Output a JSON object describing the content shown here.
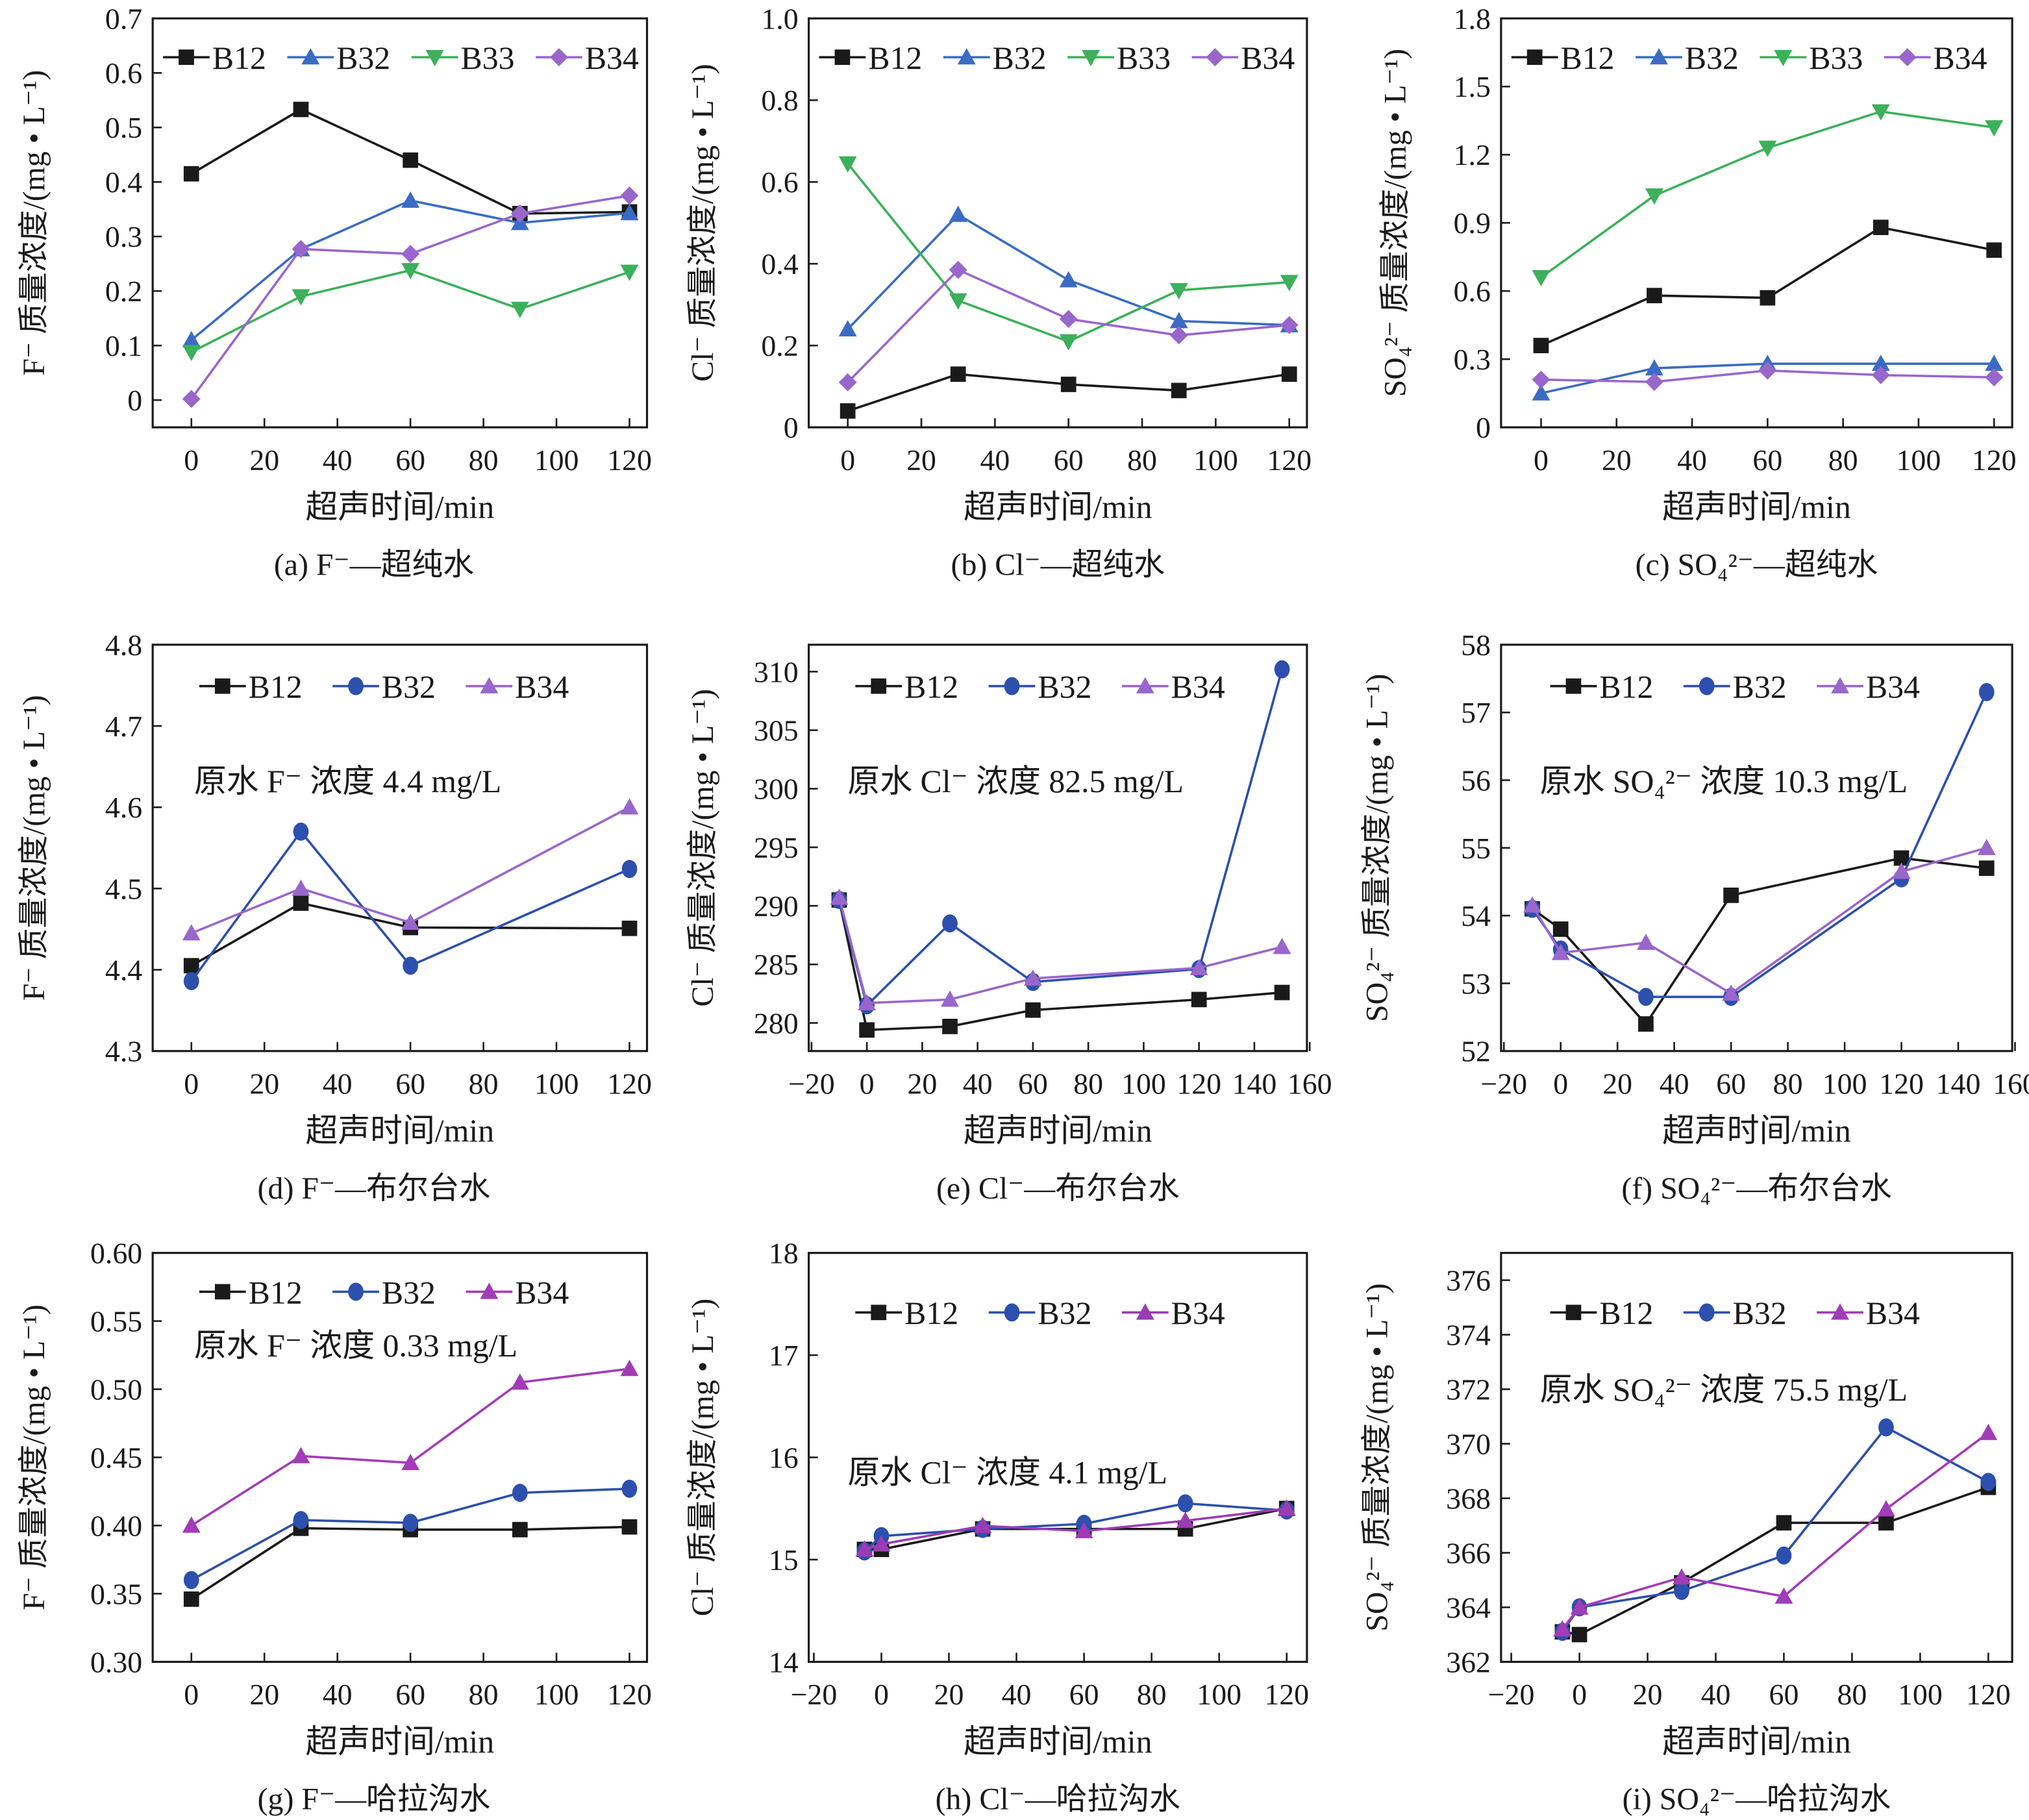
{
  "chart_data": [
    {
      "id": "a",
      "type": "line",
      "caption": "(a) F⁻—超纯水",
      "xlabel": "超声时间/min",
      "ylabel": "F⁻ 质量浓度/(mg • L⁻¹)",
      "xlim": [
        -10.6,
        124.8
      ],
      "ylim": [
        -0.05,
        0.7
      ],
      "xticks": [
        "0",
        "20",
        "40",
        "60",
        "80",
        "100",
        "120"
      ],
      "yticks": [
        "0",
        "0.1",
        "0.2",
        "0.3",
        "0.4",
        "0.5",
        "0.6",
        "0.7"
      ],
      "annotation": "",
      "legend": "top",
      "series": [
        {
          "name": "B12",
          "color": "#1a1a1a",
          "marker": "square",
          "x": [
            0,
            30,
            60,
            90,
            120
          ],
          "y": [
            0.415,
            0.533,
            0.44,
            0.342,
            0.345
          ]
        },
        {
          "name": "B32",
          "color": "#3a6cc4",
          "marker": "triangle-up",
          "x": [
            0,
            30,
            60,
            90,
            120
          ],
          "y": [
            0.11,
            0.277,
            0.366,
            0.325,
            0.343
          ]
        },
        {
          "name": "B33",
          "color": "#3cb05a",
          "marker": "triangle-down",
          "x": [
            0,
            30,
            60,
            90,
            120
          ],
          "y": [
            0.088,
            0.19,
            0.238,
            0.167,
            0.235
          ]
        },
        {
          "name": "B34",
          "color": "#9966cc",
          "marker": "diamond",
          "x": [
            0,
            30,
            60,
            90,
            120
          ],
          "y": [
            0.002,
            0.277,
            0.268,
            0.342,
            0.375
          ]
        }
      ]
    },
    {
      "id": "b",
      "type": "line",
      "caption": "(b) Cl⁻—超纯水",
      "xlabel": "超声时间/min",
      "ylabel": "Cl⁻ 质量浓度/(mg • L⁻¹)",
      "xlim": [
        -10.6,
        124.8
      ],
      "ylim": [
        0,
        1.0
      ],
      "xticks": [
        "0",
        "20",
        "40",
        "60",
        "80",
        "100",
        "120"
      ],
      "yticks": [
        "0",
        "0.2",
        "0.4",
        "0.6",
        "0.8",
        "1.0"
      ],
      "annotation": "",
      "legend": "top",
      "series": [
        {
          "name": "B12",
          "color": "#1a1a1a",
          "marker": "square",
          "x": [
            0,
            30,
            60,
            90,
            120
          ],
          "y": [
            0.04,
            0.13,
            0.105,
            0.09,
            0.13
          ]
        },
        {
          "name": "B32",
          "color": "#3a6cc4",
          "marker": "triangle-up",
          "x": [
            0,
            30,
            60,
            90,
            120
          ],
          "y": [
            0.24,
            0.52,
            0.36,
            0.26,
            0.25
          ]
        },
        {
          "name": "B33",
          "color": "#3cb05a",
          "marker": "triangle-down",
          "x": [
            0,
            30,
            60,
            90,
            120
          ],
          "y": [
            0.645,
            0.31,
            0.21,
            0.335,
            0.355
          ]
        },
        {
          "name": "B34",
          "color": "#9966cc",
          "marker": "diamond",
          "x": [
            0,
            30,
            60,
            90,
            120
          ],
          "y": [
            0.11,
            0.385,
            0.265,
            0.225,
            0.25
          ]
        }
      ]
    },
    {
      "id": "c",
      "type": "line",
      "caption": "(c) SO₄²⁻—超纯水",
      "xlabel": "超声时间/min",
      "ylabel": "SO₄²⁻ 质量浓度/(mg • L⁻¹)",
      "xlim": [
        -10.6,
        124.8
      ],
      "ylim": [
        0,
        1.8
      ],
      "xticks": [
        "0",
        "20",
        "40",
        "60",
        "80",
        "100",
        "120"
      ],
      "yticks": [
        "0",
        "0.3",
        "0.6",
        "0.9",
        "1.2",
        "1.5",
        "1.8"
      ],
      "annotation": "",
      "legend": "top",
      "series": [
        {
          "name": "B12",
          "color": "#1a1a1a",
          "marker": "square",
          "x": [
            0,
            30,
            60,
            90,
            120
          ],
          "y": [
            0.36,
            0.58,
            0.57,
            0.88,
            0.78
          ]
        },
        {
          "name": "B32",
          "color": "#3a6cc4",
          "marker": "triangle-up",
          "x": [
            0,
            30,
            60,
            90,
            120
          ],
          "y": [
            0.15,
            0.26,
            0.28,
            0.28,
            0.28
          ]
        },
        {
          "name": "B33",
          "color": "#3cb05a",
          "marker": "triangle-down",
          "x": [
            0,
            30,
            60,
            90,
            120
          ],
          "y": [
            0.66,
            1.02,
            1.23,
            1.39,
            1.32
          ]
        },
        {
          "name": "B34",
          "color": "#9966cc",
          "marker": "diamond",
          "x": [
            0,
            30,
            60,
            90,
            120
          ],
          "y": [
            0.21,
            0.2,
            0.25,
            0.23,
            0.22
          ]
        }
      ]
    },
    {
      "id": "d",
      "type": "line",
      "caption": "(d) F⁻—布尔台水",
      "xlabel": "超声时间/min",
      "ylabel": "F⁻ 质量浓度/(mg • L⁻¹)",
      "xlim": [
        -10.6,
        124.8
      ],
      "ylim": [
        4.3,
        4.8
      ],
      "xticks": [
        "0",
        "20",
        "40",
        "60",
        "80",
        "100",
        "120"
      ],
      "yticks": [
        "4.3",
        "4.4",
        "4.5",
        "4.6",
        "4.7",
        "4.8"
      ],
      "annotation": "原水 F⁻ 浓度 4.4 mg/L",
      "legend": "top",
      "series": [
        {
          "name": "B12",
          "color": "#1a1a1a",
          "marker": "square",
          "x": [
            0,
            30,
            60,
            120
          ],
          "y": [
            4.405,
            4.482,
            4.452,
            4.451
          ]
        },
        {
          "name": "B32",
          "color": "#2d4fad",
          "marker": "circle",
          "x": [
            0,
            30,
            60,
            120
          ],
          "y": [
            4.386,
            4.57,
            4.405,
            4.524
          ]
        },
        {
          "name": "B34",
          "color": "#9966cc",
          "marker": "triangle-up",
          "x": [
            0,
            30,
            60,
            120
          ],
          "y": [
            4.445,
            4.5,
            4.458,
            4.6
          ]
        }
      ]
    },
    {
      "id": "e",
      "type": "line",
      "caption": "(e) Cl⁻—布尔台水",
      "xlabel": "超声时间/min",
      "ylabel": "Cl⁻ 质量浓度/(mg • L⁻¹)",
      "xlim": [
        -21,
        159
      ],
      "ylim": [
        277.6,
        312.3
      ],
      "xticks": [
        "−20",
        "0",
        "20",
        "40",
        "60",
        "80",
        "100",
        "120",
        "140",
        "160"
      ],
      "yticks": [
        "280",
        "285",
        "290",
        "295",
        "300",
        "305",
        "310"
      ],
      "annotation": "原水 Cl⁻ 浓度 82.5 mg/L",
      "legend": "top",
      "series": [
        {
          "name": "B12",
          "color": "#1a1a1a",
          "marker": "square",
          "x": [
            -10,
            0,
            30,
            60,
            120,
            150
          ],
          "y": [
            290.5,
            279.4,
            279.7,
            281.1,
            282.0,
            282.6
          ]
        },
        {
          "name": "B32",
          "color": "#2d4fad",
          "marker": "circle",
          "x": [
            -10,
            0,
            30,
            60,
            120,
            150
          ],
          "y": [
            290.5,
            281.5,
            288.5,
            283.5,
            284.6,
            310.2
          ]
        },
        {
          "name": "B34",
          "color": "#9966cc",
          "marker": "triangle-up",
          "x": [
            -10,
            0,
            30,
            60,
            120,
            150
          ],
          "y": [
            290.7,
            281.7,
            282.0,
            283.8,
            284.7,
            286.5
          ]
        }
      ]
    },
    {
      "id": "f",
      "type": "line",
      "caption": "(f) SO₄²⁻—布尔台水",
      "xlabel": "超声时间/min",
      "ylabel": "SO₄²⁻ 质量浓度/(mg • L⁻¹)",
      "xlim": [
        -21,
        159
      ],
      "ylim": [
        52,
        58
      ],
      "xticks": [
        "−20",
        "0",
        "20",
        "40",
        "60",
        "80",
        "100",
        "120",
        "140",
        "160"
      ],
      "yticks": [
        "52",
        "53",
        "54",
        "55",
        "56",
        "57",
        "58"
      ],
      "annotation": "原水 SO₄²⁻ 浓度 10.3 mg/L",
      "legend": "top",
      "series": [
        {
          "name": "B12",
          "color": "#1a1a1a",
          "marker": "square",
          "x": [
            -10,
            0,
            30,
            60,
            120,
            150
          ],
          "y": [
            54.1,
            53.8,
            52.4,
            54.3,
            54.85,
            54.7
          ]
        },
        {
          "name": "B32",
          "color": "#2d4fad",
          "marker": "circle",
          "x": [
            -10,
            0,
            30,
            60,
            120,
            150
          ],
          "y": [
            54.1,
            53.5,
            52.8,
            52.8,
            54.55,
            57.3
          ]
        },
        {
          "name": "B34",
          "color": "#9966cc",
          "marker": "triangle-up",
          "x": [
            -10,
            0,
            30,
            60,
            120,
            150
          ],
          "y": [
            54.15,
            53.45,
            53.6,
            52.85,
            54.65,
            55.0
          ]
        }
      ]
    },
    {
      "id": "g",
      "type": "line",
      "caption": "(g) F⁻—哈拉沟水",
      "xlabel": "超声时间/min",
      "ylabel": "F⁻ 质量浓度/(mg • L⁻¹)",
      "xlim": [
        -10.6,
        124.8
      ],
      "ylim": [
        0.3,
        0.6
      ],
      "xticks": [
        "0",
        "20",
        "40",
        "60",
        "80",
        "100",
        "120"
      ],
      "yticks": [
        "0.30",
        "0.35",
        "0.40",
        "0.45",
        "0.50",
        "0.55",
        "0.60"
      ],
      "annotation": "原水 F⁻ 浓度 0.33 mg/L",
      "legend": "top",
      "series": [
        {
          "name": "B12",
          "color": "#1a1a1a",
          "marker": "square",
          "x": [
            0,
            30,
            60,
            90,
            120
          ],
          "y": [
            0.346,
            0.398,
            0.397,
            0.397,
            0.399
          ]
        },
        {
          "name": "B32",
          "color": "#2d4fad",
          "marker": "circle",
          "x": [
            0,
            30,
            60,
            90,
            120
          ],
          "y": [
            0.36,
            0.404,
            0.402,
            0.424,
            0.427
          ]
        },
        {
          "name": "B34",
          "color": "#a23cb8",
          "marker": "triangle-up",
          "x": [
            0,
            30,
            60,
            90,
            120
          ],
          "y": [
            0.4,
            0.451,
            0.446,
            0.505,
            0.515
          ]
        }
      ]
    },
    {
      "id": "h",
      "type": "line",
      "caption": "(h) Cl⁻—哈拉沟水",
      "xlabel": "超声时间/min",
      "ylabel": "Cl⁻ 质量浓度/(mg • L⁻¹)",
      "xlim": [
        -21.5,
        126
      ],
      "ylim": [
        14,
        18
      ],
      "xticks": [
        "−20",
        "0",
        "20",
        "40",
        "60",
        "80",
        "100",
        "120"
      ],
      "yticks": [
        "14",
        "15",
        "16",
        "17",
        "18"
      ],
      "annotation": "原水 Cl⁻ 浓度 4.1 mg/L",
      "legend": "top",
      "series": [
        {
          "name": "B12",
          "color": "#1a1a1a",
          "marker": "square",
          "x": [
            -5,
            0,
            30,
            60,
            90,
            120
          ],
          "y": [
            15.1,
            15.1,
            15.3,
            15.3,
            15.3,
            15.5
          ]
        },
        {
          "name": "B32",
          "color": "#2d4fad",
          "marker": "circle",
          "x": [
            -5,
            0,
            30,
            60,
            90,
            120
          ],
          "y": [
            15.08,
            15.23,
            15.3,
            15.35,
            15.55,
            15.48
          ]
        },
        {
          "name": "B34",
          "color": "#9b3cb4",
          "marker": "triangle-up",
          "x": [
            -5,
            0,
            30,
            60,
            90,
            120
          ],
          "y": [
            15.1,
            15.15,
            15.33,
            15.28,
            15.38,
            15.5
          ]
        }
      ]
    },
    {
      "id": "i",
      "type": "line",
      "caption": "(i) SO₄²⁻—哈拉沟水",
      "xlabel": "超声时间/min",
      "ylabel": "SO₄²⁻ 质量浓度/(mg • L⁻¹)",
      "xlim": [
        -23,
        127
      ],
      "ylim": [
        362,
        377
      ],
      "xticks": [
        "−20",
        "0",
        "20",
        "40",
        "60",
        "80",
        "100",
        "120"
      ],
      "yticks": [
        "362",
        "364",
        "366",
        "368",
        "370",
        "372",
        "374",
        "376"
      ],
      "annotation": "原水 SO₄²⁻ 浓度 75.5 mg/L",
      "legend": "top",
      "series": [
        {
          "name": "B12",
          "color": "#1a1a1a",
          "marker": "square",
          "x": [
            -5,
            0,
            30,
            60,
            90,
            120
          ],
          "y": [
            363.1,
            363.0,
            364.9,
            367.1,
            367.1,
            368.4
          ]
        },
        {
          "name": "B32",
          "color": "#2d4fad",
          "marker": "circle",
          "x": [
            -5,
            0,
            30,
            60,
            90,
            120
          ],
          "y": [
            363.1,
            364.0,
            364.6,
            365.9,
            370.6,
            368.6
          ]
        },
        {
          "name": "B34",
          "color": "#a23cb8",
          "marker": "triangle-up",
          "x": [
            -5,
            0,
            30,
            60,
            90,
            120
          ],
          "y": [
            363.2,
            364.0,
            365.1,
            364.4,
            367.6,
            370.4
          ]
        }
      ]
    }
  ]
}
